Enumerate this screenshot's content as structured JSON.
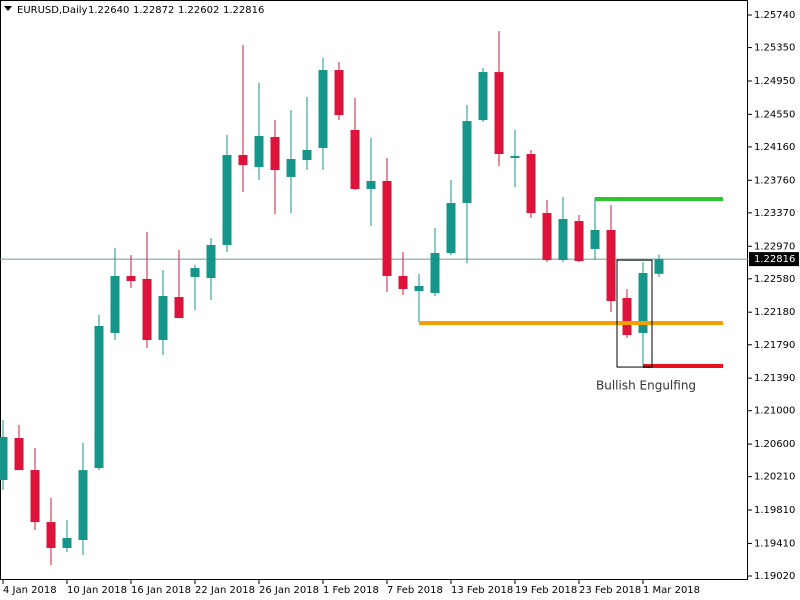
{
  "chart_data": {
    "type": "candlestick",
    "header": {
      "symbol": "EURUSD,Daily",
      "ohlc_labels": [
        "1.22640",
        "1.22872",
        "1.22602",
        "1.22816"
      ]
    },
    "categories": [
      "4 Jan 2018",
      null,
      null,
      null,
      "10 Jan 2018",
      null,
      null,
      null,
      "16 Jan 2018",
      null,
      null,
      null,
      "22 Jan 2018",
      null,
      null,
      null,
      "26 Jan 2018",
      null,
      null,
      null,
      "1 Feb 2018",
      null,
      null,
      null,
      "7 Feb 2018",
      null,
      null,
      null,
      "13 Feb 2018",
      null,
      null,
      null,
      "19 Feb 2018",
      null,
      null,
      null,
      "23 Feb 2018",
      null,
      null,
      null,
      "1 Mar 2018",
      null
    ],
    "open": [
      1.2017,
      1.20673,
      1.20289,
      1.19666,
      1.19355,
      1.19451,
      1.20313,
      1.21931,
      1.22614,
      1.22578,
      1.21847,
      1.22362,
      1.22602,
      1.2259,
      1.22985,
      1.24063,
      1.23919,
      1.24279,
      1.238,
      1.24003,
      1.24147,
      1.25081,
      1.24363,
      1.23656,
      1.23752,
      1.22614,
      1.22434,
      1.2241,
      1.22889,
      1.23488,
      1.24482,
      1.25057,
      1.24027,
      1.24075,
      1.23368,
      1.22805,
      1.23272,
      1.22937,
      1.23165,
      1.2235,
      1.21931,
      1.2264
    ],
    "high": [
      1.20888,
      1.20829,
      1.20553,
      1.19954,
      1.1969,
      1.20613,
      1.22146,
      1.22949,
      1.22865,
      1.23141,
      1.22685,
      1.22925,
      1.22745,
      1.23069,
      1.24303,
      1.25381,
      1.24926,
      1.24482,
      1.24602,
      1.24758,
      1.25225,
      1.25177,
      1.24746,
      1.24267,
      1.24027,
      1.22901,
      1.22638,
      1.23189,
      1.23764,
      1.24662,
      1.25105,
      1.25549,
      1.24363,
      1.24123,
      1.23524,
      1.2356,
      1.23344,
      1.23548,
      1.23464,
      1.22458,
      1.22781,
      1.22872
    ],
    "low": [
      1.2005,
      1.20289,
      1.19571,
      1.19151,
      1.19307,
      1.19271,
      1.20289,
      1.21847,
      1.2247,
      1.21751,
      1.21667,
      1.2211,
      1.22206,
      1.22326,
      1.22901,
      1.2362,
      1.23764,
      1.23356,
      1.23368,
      1.23883,
      1.23883,
      1.24482,
      1.23644,
      1.23213,
      1.22422,
      1.22386,
      1.22062,
      1.22374,
      1.22865,
      1.22769,
      1.24458,
      1.23931,
      1.2368,
      1.23308,
      1.22781,
      1.22781,
      1.22781,
      1.22805,
      1.22182,
      1.21871,
      1.21535,
      1.22602
    ],
    "close": [
      1.20685,
      1.20289,
      1.19666,
      1.19355,
      1.19475,
      1.20289,
      1.22015,
      1.22614,
      1.22554,
      1.21847,
      1.22374,
      1.2211,
      1.22709,
      1.22985,
      1.24063,
      1.23943,
      1.24291,
      1.23883,
      1.24015,
      1.24123,
      1.25081,
      1.24542,
      1.23656,
      1.23752,
      1.22614,
      1.22458,
      1.22494,
      1.22889,
      1.23488,
      1.2447,
      1.25057,
      1.24075,
      1.24051,
      1.23368,
      1.22805,
      1.23296,
      1.22793,
      1.23165,
      1.22314,
      1.21907,
      1.2265,
      1.22816
    ],
    "bull_color": "#16968a",
    "bear_color": "#dc143c",
    "ylim": [
      1.18972,
      1.2592
    ],
    "yticks": [
      {
        "value": 1.2574,
        "label": "1.25740"
      },
      {
        "value": 1.2535,
        "label": "1.25350"
      },
      {
        "value": 1.2495,
        "label": "1.24950"
      },
      {
        "value": 1.2455,
        "label": "1.24550"
      },
      {
        "value": 1.2416,
        "label": "1.24160"
      },
      {
        "value": 1.2376,
        "label": "1.23760"
      },
      {
        "value": 1.2337,
        "label": "1.23370"
      },
      {
        "value": 1.2297,
        "label": "1.22970"
      },
      {
        "value": 1.2258,
        "label": "1.22580"
      },
      {
        "value": 1.2218,
        "label": "1.22180"
      },
      {
        "value": 1.2179,
        "label": "1.21790"
      },
      {
        "value": 1.2139,
        "label": "1.21390"
      },
      {
        "value": 1.21,
        "label": "1.21000"
      },
      {
        "value": 1.206,
        "label": "1.20600"
      },
      {
        "value": 1.2021,
        "label": "1.20210"
      },
      {
        "value": 1.1981,
        "label": "1.19810"
      },
      {
        "value": 1.1941,
        "label": "1.19410"
      },
      {
        "value": 1.1902,
        "label": "1.19020"
      }
    ],
    "current_price": {
      "value": 1.22816,
      "label": "1.22816"
    },
    "levels": [
      {
        "value": 1.23536,
        "color": "#2ec52e"
      },
      {
        "value": 1.2205,
        "color": "#f5a000"
      },
      {
        "value": 1.21535,
        "color": "#e8101e"
      }
    ],
    "annotation": "Bullish Engulfing"
  }
}
